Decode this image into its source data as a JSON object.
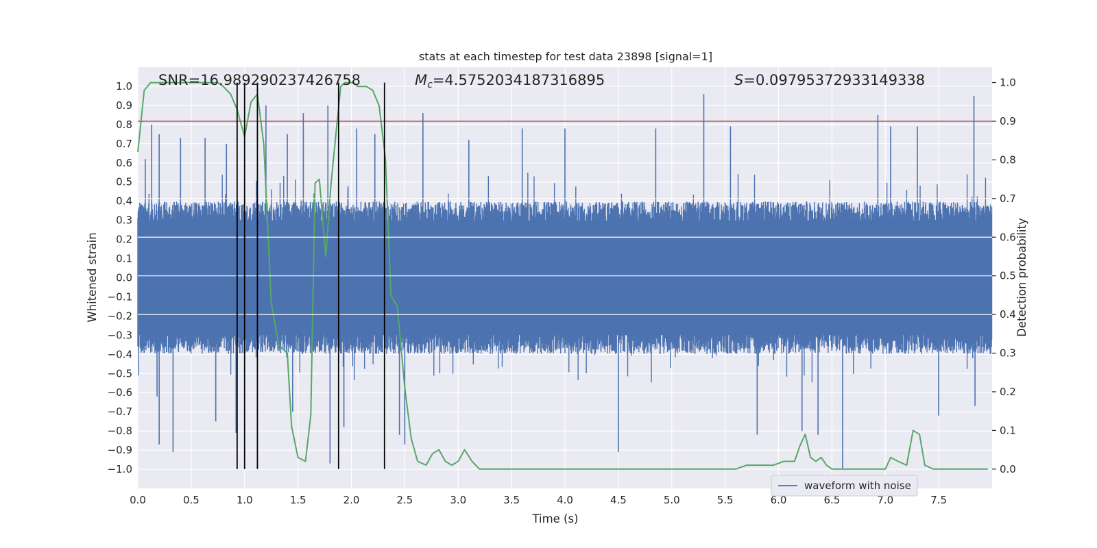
{
  "chart_data": {
    "type": "line",
    "title": "stats at each timestep for test data 23898 [signal=1]",
    "xlabel": "Time (s)",
    "ylabel": "Whitened strain",
    "y2label": "Detection probability",
    "xlim": [
      0,
      8
    ],
    "ylim": [
      -1.1,
      1.1
    ],
    "y2lim": [
      -0.05,
      1.04
    ],
    "xticks": [
      "0.0",
      "0.5",
      "1.0",
      "1.5",
      "2.0",
      "2.5",
      "3.0",
      "3.5",
      "4.0",
      "4.5",
      "5.0",
      "5.5",
      "6.0",
      "6.5",
      "7.0",
      "7.5"
    ],
    "yticks": [
      "1.0",
      "0.9",
      "0.8",
      "0.7",
      "0.6",
      "0.5",
      "0.4",
      "0.3",
      "0.2",
      "0.1",
      "0.0",
      "-0.1",
      "-0.2",
      "-0.3",
      "-0.4",
      "-0.5",
      "-0.6",
      "-0.7",
      "-0.8",
      "-0.9",
      "-1.0"
    ],
    "y2ticks": [
      "1.0",
      "0.9",
      "0.8",
      "0.7",
      "0.6",
      "0.5",
      "0.4",
      "0.3",
      "0.2",
      "0.1",
      "0.0"
    ],
    "grid": true,
    "legend_position": "lower-right",
    "colors": {
      "waveform": "#4c72b0",
      "probability": "#55a868",
      "threshold": "#c44e52",
      "markers": "#000000",
      "background": "#eaeaf2"
    },
    "annotations": {
      "snr": "SNR=16.989290237426758",
      "mc_symbol": "M",
      "mc_sub": "c",
      "mc_value": "=4.5752034187316895",
      "s_symbol": "S",
      "s_value": "=0.09795372933149338"
    },
    "series": [
      {
        "name": "waveform with noise",
        "kind": "strain-noise",
        "axis": "left",
        "envelope": [
          0.4,
          -0.4
        ],
        "peaks": [
          {
            "t": 0.07,
            "v": 0.62
          },
          {
            "t": 0.13,
            "v": 0.8
          },
          {
            "t": 0.18,
            "v": -0.62
          },
          {
            "t": 0.2,
            "v": 0.75
          },
          {
            "t": 0.2,
            "v": -0.87
          },
          {
            "t": 0.33,
            "v": -0.91
          },
          {
            "t": 0.4,
            "v": 0.73
          },
          {
            "t": 0.63,
            "v": 0.73
          },
          {
            "t": 0.73,
            "v": -0.75
          },
          {
            "t": 0.83,
            "v": 0.7
          },
          {
            "t": 0.92,
            "v": -0.81
          },
          {
            "t": 1.2,
            "v": 0.9
          },
          {
            "t": 1.4,
            "v": 0.75
          },
          {
            "t": 1.45,
            "v": -0.7
          },
          {
            "t": 1.55,
            "v": 0.86
          },
          {
            "t": 1.78,
            "v": 0.9
          },
          {
            "t": 1.8,
            "v": -0.97
          },
          {
            "t": 1.93,
            "v": -0.78
          },
          {
            "t": 2.05,
            "v": 0.78
          },
          {
            "t": 2.22,
            "v": 0.75
          },
          {
            "t": 2.45,
            "v": -0.82
          },
          {
            "t": 2.5,
            "v": -0.87
          },
          {
            "t": 2.67,
            "v": 0.86
          },
          {
            "t": 3.1,
            "v": 0.72
          },
          {
            "t": 3.6,
            "v": 0.78
          },
          {
            "t": 4.0,
            "v": 0.78
          },
          {
            "t": 4.5,
            "v": -0.91
          },
          {
            "t": 4.85,
            "v": 0.78
          },
          {
            "t": 5.3,
            "v": 0.96
          },
          {
            "t": 5.55,
            "v": 0.79
          },
          {
            "t": 5.8,
            "v": -0.82
          },
          {
            "t": 6.22,
            "v": -0.8
          },
          {
            "t": 6.37,
            "v": -0.82
          },
          {
            "t": 6.6,
            "v": -1.0
          },
          {
            "t": 6.93,
            "v": 0.85
          },
          {
            "t": 7.05,
            "v": 0.79
          },
          {
            "t": 7.3,
            "v": 0.79
          },
          {
            "t": 7.5,
            "v": -0.72
          },
          {
            "t": 7.83,
            "v": 0.95
          },
          {
            "t": 7.84,
            "v": -0.67
          }
        ]
      },
      {
        "name": "Detection probability",
        "axis": "right",
        "x": [
          0.0,
          0.06,
          0.12,
          0.2,
          0.3,
          0.4,
          0.5,
          0.6,
          0.7,
          0.75,
          0.8,
          0.87,
          0.93,
          1.0,
          1.06,
          1.12,
          1.18,
          1.25,
          1.32,
          1.4,
          1.44,
          1.5,
          1.57,
          1.62,
          1.66,
          1.7,
          1.76,
          1.81,
          1.86,
          1.9,
          1.94,
          1.98,
          2.02,
          2.06,
          2.14,
          2.2,
          2.26,
          2.32,
          2.37,
          2.43,
          2.5,
          2.56,
          2.62,
          2.7,
          2.76,
          2.82,
          2.88,
          2.94,
          3.0,
          3.06,
          3.13,
          3.2,
          3.5,
          3.8,
          4.0,
          4.5,
          5.0,
          5.6,
          5.7,
          5.8,
          5.95,
          6.05,
          6.1,
          6.15,
          6.2,
          6.25,
          6.3,
          6.35,
          6.4,
          6.45,
          6.5,
          6.6,
          7.0,
          7.05,
          7.12,
          7.2,
          7.26,
          7.32,
          7.37,
          7.45,
          7.6,
          7.8,
          7.96
        ],
        "y": [
          0.82,
          0.98,
          1.0,
          1.0,
          1.0,
          1.0,
          1.0,
          1.0,
          1.0,
          1.0,
          0.99,
          0.97,
          0.93,
          0.86,
          0.95,
          0.97,
          0.84,
          0.43,
          0.32,
          0.3,
          0.11,
          0.03,
          0.02,
          0.14,
          0.74,
          0.75,
          0.55,
          0.74,
          0.88,
          0.99,
          1.0,
          1.0,
          1.0,
          0.99,
          0.99,
          0.98,
          0.94,
          0.8,
          0.45,
          0.42,
          0.21,
          0.08,
          0.02,
          0.01,
          0.04,
          0.05,
          0.02,
          0.01,
          0.02,
          0.05,
          0.02,
          0.0,
          0.0,
          0.0,
          0.0,
          0.0,
          0.0,
          0.0,
          0.01,
          0.01,
          0.01,
          0.02,
          0.02,
          0.02,
          0.06,
          0.09,
          0.03,
          0.02,
          0.03,
          0.01,
          0.0,
          0.0,
          0.0,
          0.03,
          0.02,
          0.01,
          0.1,
          0.09,
          0.01,
          0.0,
          0.0,
          0.0,
          0.0
        ]
      }
    ],
    "threshold": {
      "name": "threshold",
      "y2": 0.9
    },
    "markers": [
      0.93,
      1.0,
      1.12,
      1.88,
      2.31
    ]
  }
}
